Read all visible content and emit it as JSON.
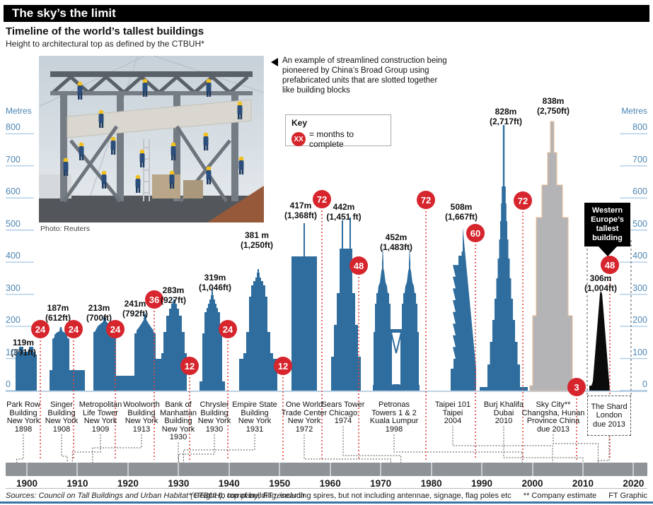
{
  "header": {
    "title": "The sky’s the limit",
    "subtitle": "Timeline of the world’s tallest buildings",
    "note": "Height to architectural top as defined by the CTBUH*"
  },
  "photo": {
    "caption": "Photo: Reuters"
  },
  "annotation": {
    "text": "An example of streamlined construction being pioneered by China’s Broad Group using prefabricated units that are slotted together like building blocks"
  },
  "key": {
    "title": "Key",
    "symbol": "XX",
    "text": "= months to complete"
  },
  "banner": {
    "text": "Western\nEurope’s\ntallest\nbuilding"
  },
  "footer": {
    "sources": "Sources: Council on Tall Buildings and Urban Habitat (CTBUH); company; FT research",
    "note1": "* Height to top of building, including spires, but not including antennae, signage, flag poles etc",
    "note2": "** Company estimate",
    "credit": "FT Graphic"
  },
  "colors": {
    "building_blue": "#2e6d9e",
    "proposed_gray": "#b4b4b6",
    "proposed_outline": "#e9bd96",
    "shard_black": "#0b0b0b",
    "badge_red": "#d6252d",
    "axis_blue": "#4c86b4",
    "tick_blue": "#aecde8",
    "diamond_yellow": "#f2e41f",
    "diamond_red": "#cc2228",
    "leader_dark": "#555555",
    "leader_red": "#e04840"
  },
  "chart_data": {
    "type": "bar",
    "title": "Timeline of the world's tallest buildings",
    "ylabel": "Metres",
    "unit": "Metres",
    "ylim": [
      0,
      800
    ],
    "yticks": [
      0,
      100,
      200,
      300,
      400,
      500,
      600,
      700,
      800
    ],
    "timeline_years": [
      1900,
      1910,
      1920,
      1930,
      1940,
      1950,
      1960,
      1970,
      1980,
      1990,
      2000,
      2010,
      2020
    ],
    "buildings": [
      {
        "id": "park_row",
        "name_lines": [
          "Park Row",
          "Building",
          "New York",
          "1898"
        ],
        "height_m": 119,
        "height_label": "119m",
        "height_ft": "(391ft)",
        "months": 24,
        "year": 1898,
        "status": "built",
        "color": "blue"
      },
      {
        "id": "singer",
        "name_lines": [
          "Singer",
          "Building",
          "New York",
          "1908"
        ],
        "height_m": 187,
        "height_label": "187m",
        "height_ft": "(612ft)",
        "months": 24,
        "year": 1908,
        "status": "built",
        "color": "blue"
      },
      {
        "id": "met_life",
        "name_lines": [
          "Metropolitan",
          "Life Tower",
          "New York",
          "1909"
        ],
        "height_m": 213,
        "height_label": "213m",
        "height_ft": "(700ft)",
        "months": 24,
        "year": 1909,
        "status": "built",
        "color": "blue"
      },
      {
        "id": "woolworth",
        "name_lines": [
          "Woolworth",
          "Building",
          "New York",
          "1913"
        ],
        "height_m": 241,
        "height_label": "241m",
        "height_ft": "(792ft)",
        "months": 36,
        "year": 1913,
        "status": "built",
        "color": "blue"
      },
      {
        "id": "bank_manhattan",
        "name_lines": [
          "Bank of",
          "Manhattan",
          "Building",
          "New York",
          "1930"
        ],
        "height_m": 283,
        "height_label": "283m",
        "height_ft": "(927ft)",
        "months": 12,
        "year": 1930,
        "status": "built",
        "color": "blue"
      },
      {
        "id": "chrysler",
        "name_lines": [
          "Chrysler",
          "Building",
          "New York",
          "1930"
        ],
        "height_m": 319,
        "height_label": "319m",
        "height_ft": "(1,046ft)",
        "months": 24,
        "year": 1930,
        "status": "built",
        "color": "blue"
      },
      {
        "id": "empire_state",
        "name_lines": [
          "Empire State",
          "Building",
          "New York",
          "1931"
        ],
        "height_m": 381,
        "height_label": "381 m",
        "height_ft": "(1,250ft)",
        "months": 12,
        "year": 1931,
        "status": "built",
        "color": "blue"
      },
      {
        "id": "wtc",
        "name_lines": [
          "One World",
          "Trade Center",
          "New York",
          "1972"
        ],
        "height_m": 417,
        "height_label": "417m",
        "height_ft": "(1,368ft)",
        "months": 72,
        "year": 1972,
        "status": "built",
        "color": "blue"
      },
      {
        "id": "sears",
        "name_lines": [
          "Sears Tower",
          "Chicago",
          "1974"
        ],
        "height_m": 442,
        "height_label": "442m",
        "height_ft": "(1,451 ft)",
        "months": 48,
        "year": 1974,
        "status": "built",
        "color": "blue"
      },
      {
        "id": "petronas",
        "name_lines": [
          "Petronas",
          "Towers 1 & 2",
          "Kuala Lumpur",
          "1998"
        ],
        "height_m": 452,
        "height_label": "452m",
        "height_ft": "(1,483ft)",
        "months": 72,
        "year": 1998,
        "status": "built",
        "color": "blue"
      },
      {
        "id": "taipei",
        "name_lines": [
          "Taipei 101",
          "Taipei",
          "2004"
        ],
        "height_m": 508,
        "height_label": "508m",
        "height_ft": "(1,667ft)",
        "months": 60,
        "year": 2004,
        "status": "built",
        "color": "blue"
      },
      {
        "id": "burj",
        "name_lines": [
          "Burj Khalifa",
          "Dubai",
          "2010"
        ],
        "height_m": 828,
        "height_label": "828m",
        "height_ft": "(2,717ft)",
        "months": 72,
        "year": 2010,
        "status": "built",
        "color": "blue"
      },
      {
        "id": "sky_city",
        "name_lines": [
          "Sky City**",
          "Changsha, Hunan",
          "Province China",
          "due 2013"
        ],
        "height_m": 838,
        "height_label": "838m",
        "height_ft": "(2,750ft)",
        "months": 3,
        "year": 2013,
        "status": "proposed",
        "color": "gray"
      },
      {
        "id": "shard",
        "name_lines": [
          "The Shard",
          "London",
          "due 2013"
        ],
        "height_m": 306,
        "height_label": "306m",
        "height_ft": "(1,004ft)",
        "months": 48,
        "year": 2013,
        "status": "proposed",
        "color": "black"
      }
    ]
  }
}
